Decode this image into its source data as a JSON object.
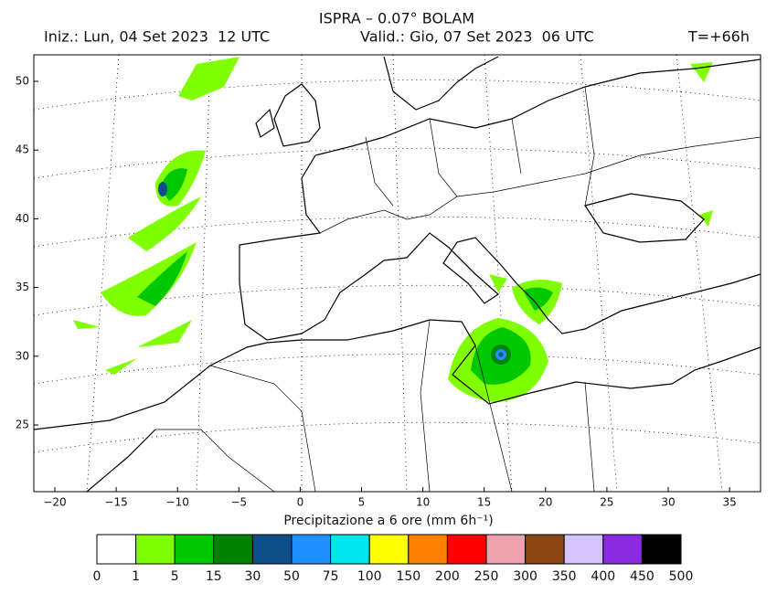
{
  "header": {
    "title": "ISPRA – 0.07° BOLAM",
    "init": "Iniz.: Lun, 04 Set 2023  12 UTC",
    "valid": "Valid.: Gio, 07 Set 2023  06 UTC",
    "lead": "T=+66h"
  },
  "map": {
    "xticks": [
      "−20",
      "−15",
      "−10",
      "−5",
      "0",
      "5",
      "10",
      "15",
      "20",
      "25",
      "30",
      "35"
    ],
    "yticks": [
      "50",
      "45",
      "40",
      "35",
      "30",
      "25"
    ]
  },
  "legend": {
    "title": "Precipitazione a 6 ore (mm 6h⁻¹)",
    "colors": [
      "#ffffff",
      "#80ff00",
      "#00c800",
      "#008200",
      "#104e8b",
      "#1e90ff",
      "#00e5ee",
      "#ffff00",
      "#ff8000",
      "#ff0000",
      "#eea2ad",
      "#8b4513",
      "#d4c4fc",
      "#8a2be2",
      "#000000"
    ],
    "labels": [
      "0",
      "1",
      "5",
      "15",
      "30",
      "50",
      "75",
      "100",
      "150",
      "200",
      "250",
      "300",
      "350",
      "400",
      "450",
      "500"
    ]
  }
}
